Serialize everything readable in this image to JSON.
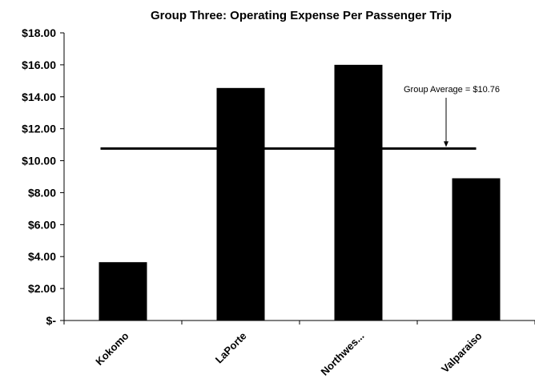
{
  "chart_data": {
    "type": "bar",
    "title": "Group Three:  Operating Expense Per Passenger Trip",
    "xlabel": "",
    "ylabel": "",
    "categories": [
      "Kokomo",
      "LaPorte",
      "Northwes...",
      "Valparaiso"
    ],
    "values": [
      3.65,
      14.55,
      16.0,
      8.9
    ],
    "ylim": [
      0,
      18
    ],
    "yticks": [
      0,
      2,
      4,
      6,
      8,
      10,
      12,
      14,
      16,
      18
    ],
    "ytick_labels": [
      "$-",
      "$2.00",
      "$4.00",
      "$6.00",
      "$8.00",
      "$10.00",
      "$12.00",
      "$14.00",
      "$16.00",
      "$18.00"
    ],
    "bar_color": "#000000",
    "grid": false,
    "reference_line": {
      "value": 10.76,
      "label": "Group Average = $10.76",
      "color": "#000000"
    }
  }
}
